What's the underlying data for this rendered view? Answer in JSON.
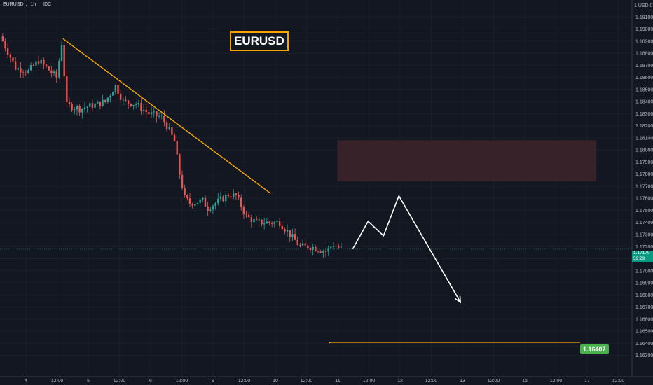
{
  "header": {
    "symbol": "EURUSD",
    "interval": "1h",
    "source": "IDC"
  },
  "currency_label": "1 USD 0",
  "last_price": {
    "value": "1.17179",
    "countdown": "59:29"
  },
  "colors": {
    "background": "#131722",
    "up": "#26a69a",
    "down": "#ef5350",
    "trendline": "#f7a600",
    "zone": "#3b2329",
    "projection": "#ffffff",
    "target": "#4caf50"
  },
  "chart_data": {
    "type": "candlestick",
    "title": "EURUSD",
    "xlabel": "",
    "ylabel": "",
    "ylim": [
      1.1624,
      1.192
    ],
    "y_ticks": [
      "1.19100",
      "1.19000",
      "1.18900",
      "1.18800",
      "1.18700",
      "1.18600",
      "1.18500",
      "1.18400",
      "1.18300",
      "1.18200",
      "1.18100",
      "1.18000",
      "1.17900",
      "1.17800",
      "1.17700",
      "1.17600",
      "1.17500",
      "1.17400",
      "1.17300",
      "1.17200",
      "1.17100",
      "1.17000",
      "1.16900",
      "1.16800",
      "1.16700",
      "1.16600",
      "1.16500",
      "1.16400",
      "1.16300"
    ],
    "x_ticks": [
      "4",
      "12:00",
      "5",
      "12:00",
      "6",
      "12:00",
      "9",
      "12:00",
      "10",
      "12:00",
      "11",
      "12:00",
      "12",
      "12:00",
      "13",
      "12:00",
      "16",
      "12:00",
      "17",
      "12:00"
    ],
    "candle_anchors": [
      {
        "bar": 0,
        "price": 1.189
      },
      {
        "bar": 5,
        "price": 1.1868
      },
      {
        "bar": 10,
        "price": 1.1865
      },
      {
        "bar": 14,
        "price": 1.1874
      },
      {
        "bar": 18,
        "price": 1.1866
      },
      {
        "bar": 21,
        "price": 1.186
      },
      {
        "bar": 23,
        "price": 1.1888
      },
      {
        "bar": 25,
        "price": 1.1837
      },
      {
        "bar": 30,
        "price": 1.1834
      },
      {
        "bar": 35,
        "price": 1.1837
      },
      {
        "bar": 40,
        "price": 1.184
      },
      {
        "bar": 44,
        "price": 1.1853
      },
      {
        "bar": 47,
        "price": 1.184
      },
      {
        "bar": 52,
        "price": 1.1838
      },
      {
        "bar": 57,
        "price": 1.183
      },
      {
        "bar": 62,
        "price": 1.1827
      },
      {
        "bar": 64,
        "price": 1.182
      },
      {
        "bar": 67,
        "price": 1.1807
      },
      {
        "bar": 69,
        "price": 1.178
      },
      {
        "bar": 71,
        "price": 1.176
      },
      {
        "bar": 73,
        "price": 1.1756
      },
      {
        "bar": 78,
        "price": 1.1758
      },
      {
        "bar": 80,
        "price": 1.1752
      },
      {
        "bar": 83,
        "price": 1.1756
      },
      {
        "bar": 88,
        "price": 1.1763
      },
      {
        "bar": 91,
        "price": 1.1762
      },
      {
        "bar": 95,
        "price": 1.1745
      },
      {
        "bar": 99,
        "price": 1.174
      },
      {
        "bar": 103,
        "price": 1.174
      },
      {
        "bar": 108,
        "price": 1.174
      },
      {
        "bar": 112,
        "price": 1.173
      },
      {
        "bar": 116,
        "price": 1.172
      },
      {
        "bar": 120,
        "price": 1.172
      },
      {
        "bar": 126,
        "price": 1.1716
      },
      {
        "bar": 129,
        "price": 1.1722
      },
      {
        "bar": 132,
        "price": 1.1718
      }
    ],
    "candle_count": 133,
    "trendline": {
      "from": {
        "bar": 24,
        "price": 1.1892
      },
      "to": {
        "bar": 105,
        "price": 1.1764
      }
    },
    "supply_zone": {
      "from_bar": 131,
      "to_bar": 232,
      "price_low": 1.1774,
      "price_high": 1.1808
    },
    "projection_path": [
      {
        "bar": 137,
        "price": 1.1718
      },
      {
        "bar": 143,
        "price": 1.1741
      },
      {
        "bar": 149,
        "price": 1.1729
      },
      {
        "bar": 155,
        "price": 1.1762
      },
      {
        "bar": 179,
        "price": 1.1674
      }
    ],
    "target": {
      "price": 1.16407,
      "label": "1.16407",
      "from_bar": 128
    },
    "last_price_line": 1.17179
  }
}
